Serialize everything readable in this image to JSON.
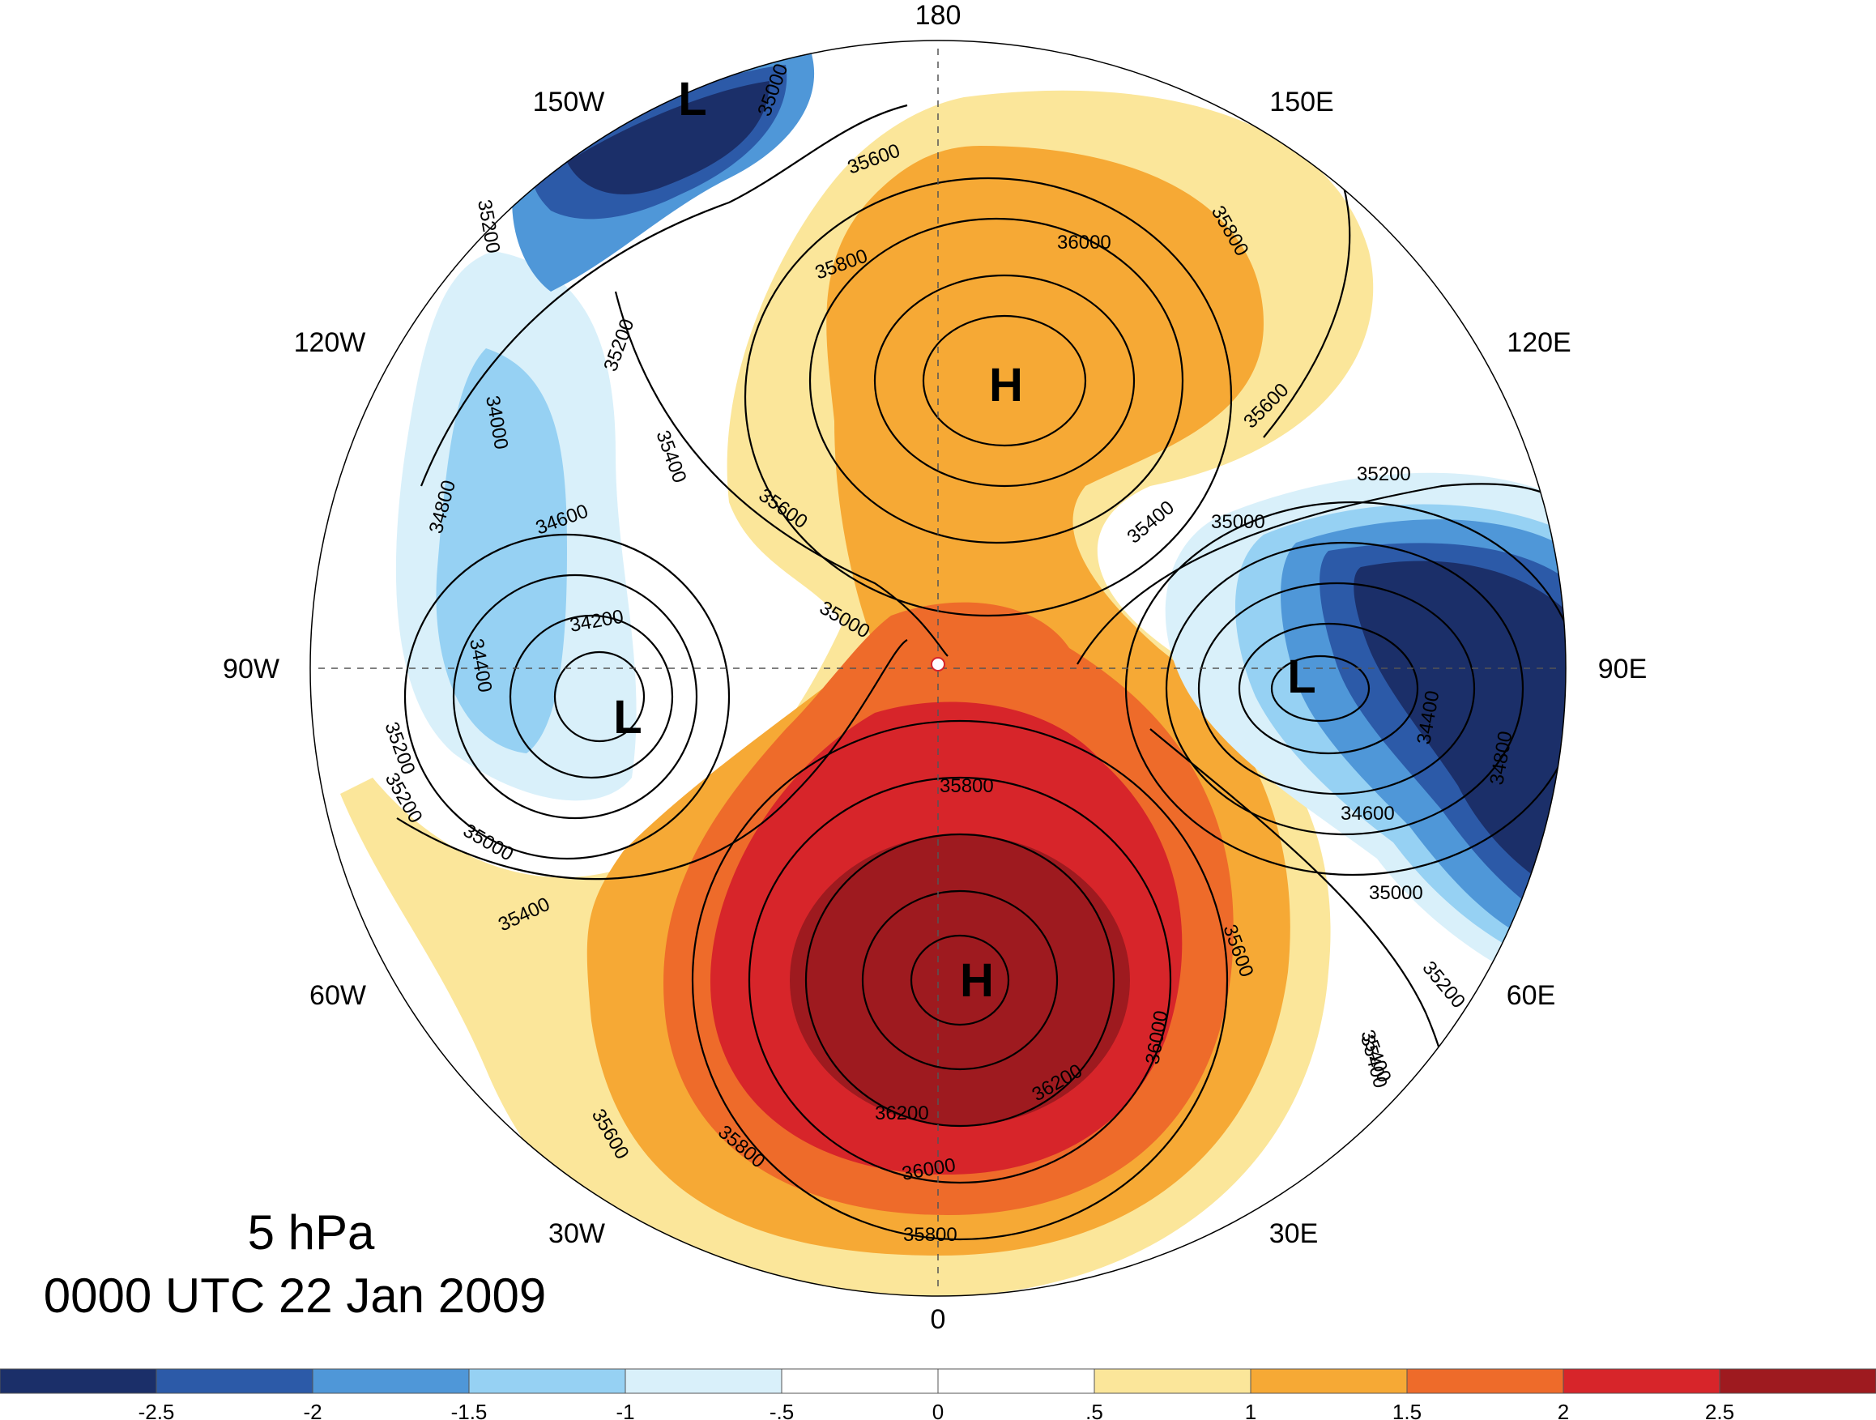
{
  "info": {
    "level": "5 hPa",
    "valid_time": "0000 UTC 22 Jan 2009"
  },
  "longitude_labels": [
    "180",
    "150E",
    "120E",
    "90E",
    "60E",
    "30E",
    "0",
    "30W",
    "60W",
    "90W",
    "120W",
    "150W"
  ],
  "centers": [
    {
      "type": "H",
      "label": "H"
    },
    {
      "type": "H",
      "label": "H"
    },
    {
      "type": "L",
      "label": "L"
    },
    {
      "type": "L",
      "label": "L"
    },
    {
      "type": "L",
      "label": "L"
    }
  ],
  "contour_labels": [
    "35000",
    "35600",
    "35200",
    "35800",
    "36000",
    "35800",
    "35600",
    "34000",
    "35200",
    "34800",
    "34600",
    "34200",
    "34400",
    "35400",
    "35600",
    "35000",
    "35200",
    "35400",
    "35000",
    "35200",
    "34400",
    "34800",
    "34600",
    "35000",
    "35200",
    "35400",
    "35200",
    "35000",
    "35400",
    "35800",
    "36200",
    "36200",
    "36000",
    "36000",
    "35600",
    "35800",
    "35800",
    "35600",
    "35400"
  ],
  "colorbar": {
    "colors": [
      "#1b2f69",
      "#2c5aa8",
      "#4f97d8",
      "#96d1f3",
      "#d9f0fa",
      "#ffffff",
      "#ffffff",
      "#fbe69a",
      "#f6a935",
      "#ee6b2a",
      "#d7252a",
      "#9e1a1f"
    ],
    "tick_labels": [
      "-2.5",
      "-2",
      "-1.5",
      "-1",
      "-.5",
      "0",
      ".5",
      "1",
      "1.5",
      "2",
      "2.5"
    ]
  }
}
